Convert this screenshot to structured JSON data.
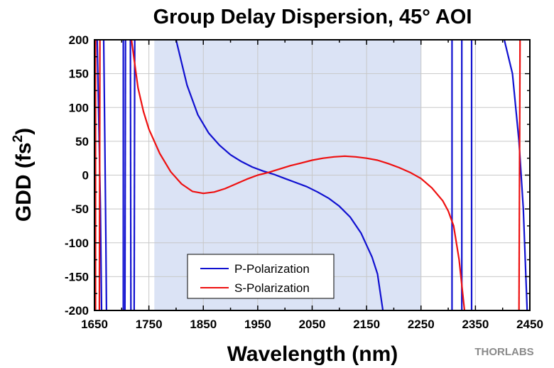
{
  "chart_data": {
    "type": "line",
    "title": "Group Delay Dispersion, 45° AOI",
    "xlabel": "Wavelength (nm)",
    "ylabel_main": "GDD (fs",
    "ylabel_sup": "2",
    "ylabel_close": ")",
    "xlim": [
      1650,
      2450
    ],
    "ylim": [
      -200,
      200
    ],
    "xticks": [
      1650,
      1750,
      1850,
      1950,
      2050,
      2150,
      2250,
      2350,
      2450
    ],
    "yticks": [
      200,
      150,
      100,
      50,
      0,
      -50,
      -100,
      -150,
      -200
    ],
    "grid": true,
    "shaded_region": {
      "x": [
        1760,
        2250
      ],
      "color": "#dbe3f5"
    },
    "legend_position": "bottom-left",
    "series": [
      {
        "name": "P-Polarization",
        "color": "#1010d0",
        "segments": [
          [
            [
              1655,
              200
            ],
            [
              1658,
              80
            ],
            [
              1661,
              -50
            ],
            [
              1663,
              -200
            ]
          ],
          [
            [
              1667,
              200
            ],
            [
              1669,
              50
            ],
            [
              1671,
              -100
            ],
            [
              1672,
              -200
            ]
          ],
          [
            [
              1703,
              200
            ],
            [
              1703,
              -200
            ]
          ],
          [
            [
              1706,
              -200
            ],
            [
              1707,
              200
            ]
          ],
          [
            [
              1716,
              200
            ],
            [
              1717,
              -200
            ]
          ],
          [
            [
              1723,
              -200
            ],
            [
              1724,
              200
            ]
          ],
          [
            [
              1800,
              200
            ],
            [
              1820,
              133
            ],
            [
              1840,
              89
            ],
            [
              1860,
              62
            ],
            [
              1880,
              44
            ],
            [
              1900,
              30
            ],
            [
              1920,
              20
            ],
            [
              1940,
              12
            ],
            [
              1960,
              6
            ],
            [
              1980,
              1
            ],
            [
              2000,
              -5
            ],
            [
              2020,
              -11
            ],
            [
              2040,
              -17
            ],
            [
              2060,
              -25
            ],
            [
              2080,
              -34
            ],
            [
              2100,
              -46
            ],
            [
              2120,
              -62
            ],
            [
              2140,
              -86
            ],
            [
              2160,
              -121
            ],
            [
              2170,
              -146
            ],
            [
              2180,
              -200
            ]
          ],
          [
            [
              2307,
              -200
            ],
            [
              2307,
              200
            ]
          ],
          [
            [
              2325,
              -200
            ],
            [
              2325,
              200
            ]
          ],
          [
            [
              2343,
              200
            ],
            [
              2343,
              -200
            ]
          ],
          [
            [
              2403,
              200
            ],
            [
              2418,
              150
            ],
            [
              2430,
              50
            ],
            [
              2438,
              -50
            ],
            [
              2445,
              -200
            ]
          ]
        ]
      },
      {
        "name": "S-Polarization",
        "color": "#ee1010",
        "segments": [
          [
            [
              1652,
              200
            ],
            [
              1652,
              -200
            ]
          ],
          [
            [
              1659,
              -200
            ],
            [
              1660,
              200
            ]
          ],
          [
            [
              1718,
              200
            ],
            [
              1730,
              129
            ],
            [
              1740,
              94
            ],
            [
              1750,
              68
            ],
            [
              1770,
              32
            ],
            [
              1790,
              5
            ],
            [
              1810,
              -13
            ],
            [
              1830,
              -24
            ],
            [
              1850,
              -27
            ],
            [
              1870,
              -25
            ],
            [
              1890,
              -20
            ],
            [
              1910,
              -13
            ],
            [
              1930,
              -6
            ],
            [
              1950,
              0
            ],
            [
              1970,
              4
            ],
            [
              1990,
              9
            ],
            [
              2010,
              14
            ],
            [
              2030,
              18
            ],
            [
              2050,
              22
            ],
            [
              2070,
              25
            ],
            [
              2090,
              27
            ],
            [
              2110,
              28
            ],
            [
              2130,
              27
            ],
            [
              2150,
              25
            ],
            [
              2170,
              22
            ],
            [
              2190,
              17
            ],
            [
              2210,
              11
            ],
            [
              2230,
              4
            ],
            [
              2250,
              -5
            ],
            [
              2270,
              -19
            ],
            [
              2290,
              -38
            ],
            [
              2300,
              -53
            ],
            [
              2310,
              -75
            ],
            [
              2320,
              -125
            ],
            [
              2330,
              -200
            ]
          ],
          [
            [
              2430,
              -200
            ],
            [
              2432,
              200
            ]
          ]
        ]
      }
    ]
  },
  "brand": {
    "name": "THORLABS"
  }
}
